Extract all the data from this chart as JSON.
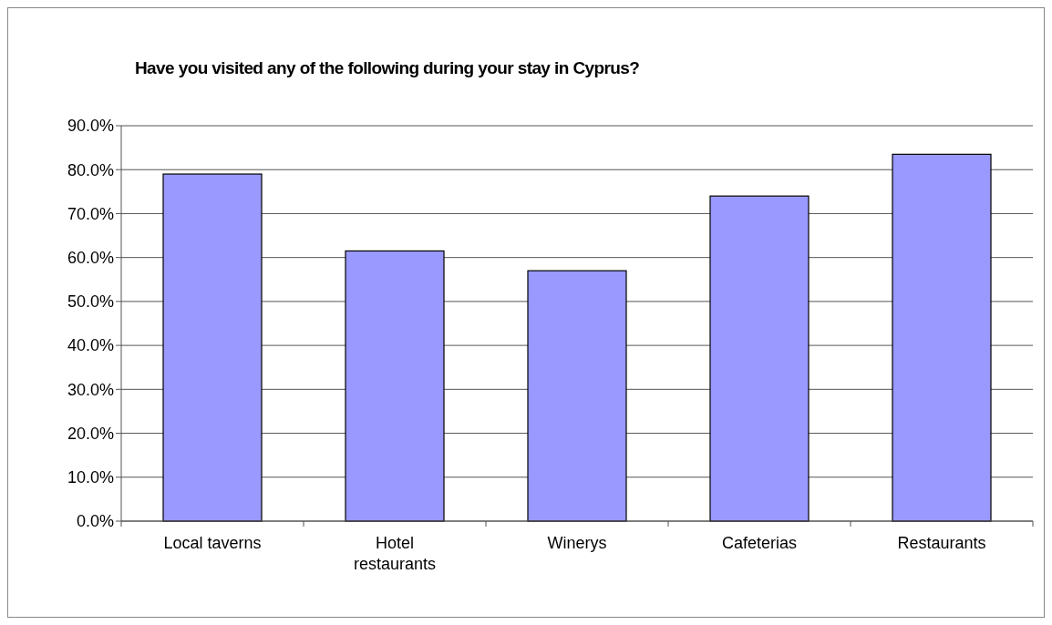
{
  "chart_data": {
    "type": "bar",
    "title": "Have you visited any of the following during your stay in Cyprus?",
    "categories": [
      "Local taverns",
      "Hotel restaurants",
      "Winerys",
      "Cafeterias",
      "Restaurants"
    ],
    "values": [
      79,
      61.5,
      57,
      74,
      83.5
    ],
    "color": "#9999ff",
    "ylim": [
      0,
      90
    ],
    "yticks": [
      {
        "value": 0,
        "label": "0.0%"
      },
      {
        "value": 10,
        "label": "10.0%"
      },
      {
        "value": 20,
        "label": "20.0%"
      },
      {
        "value": 30,
        "label": "30.0%"
      },
      {
        "value": 40,
        "label": "40.0%"
      },
      {
        "value": 50,
        "label": "50.0%"
      },
      {
        "value": 60,
        "label": "60.0%"
      },
      {
        "value": 70,
        "label": "70.0%"
      },
      {
        "value": 80,
        "label": "80.0%"
      },
      {
        "value": 90,
        "label": "90.0%"
      }
    ],
    "grid": "y"
  }
}
